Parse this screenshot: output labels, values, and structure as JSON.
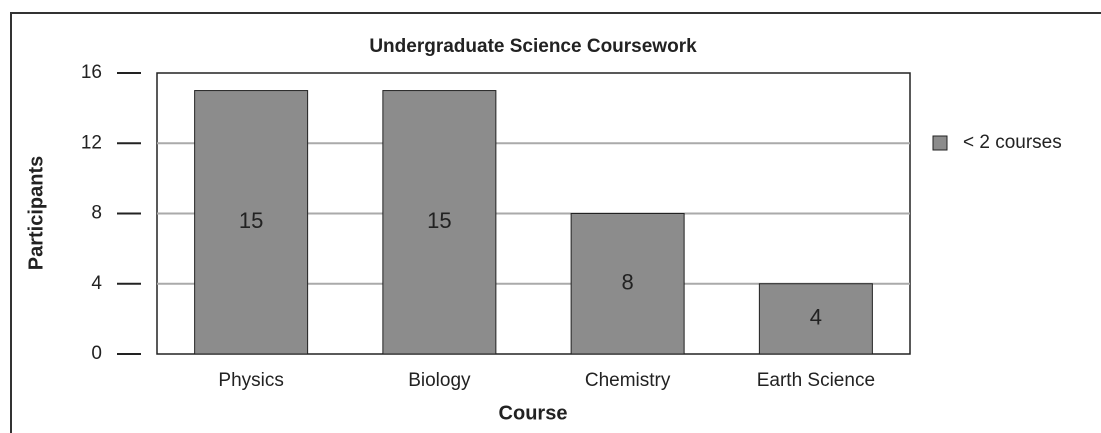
{
  "chart_data": {
    "type": "bar",
    "title": "Undergraduate Science Coursework",
    "x_label": "Course",
    "y_label": "Participants",
    "categories": [
      "Physics",
      "Biology",
      "Chemistry",
      "Earth Science"
    ],
    "series": [
      {
        "name": "< 2 courses",
        "color": "#8c8c8c",
        "values": [
          15,
          15,
          8,
          4
        ]
      }
    ],
    "ylim": [
      0,
      16
    ],
    "yticks": [
      0,
      4,
      8,
      12,
      16
    ],
    "grid": true,
    "legend": "right"
  }
}
